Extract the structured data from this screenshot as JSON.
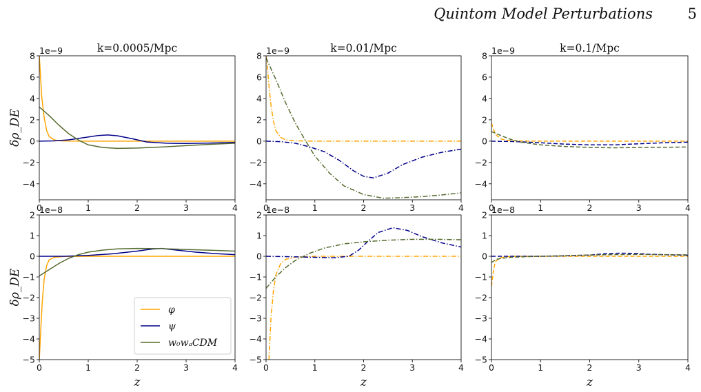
{
  "header": {
    "running_title": "Quintom Model Perturbations",
    "page_number": "5"
  },
  "colors": {
    "phi": "#FFA500",
    "psi": "#00008B",
    "w0wa": "#556B2F"
  },
  "legend": {
    "placement": "lower-right of bottom-left panel",
    "entries": [
      "φ",
      "ψ",
      "w₀wₐCDM"
    ]
  },
  "chart_data": [
    {
      "type": "line",
      "title": "k=0.0005/Mpc",
      "xlabel": "",
      "ylabel": "δρ_DE",
      "offset_label": "1e−9",
      "xlim": [
        0,
        4
      ],
      "ylim": [
        -5.5,
        8
      ],
      "xticks": [
        "0",
        "1",
        "2",
        "3",
        "4"
      ],
      "yticks": [
        "−4",
        "−2",
        "0",
        "2",
        "4",
        "6",
        "8"
      ],
      "ytick_values": [
        -4,
        -2,
        0,
        2,
        4,
        6,
        8
      ],
      "series": [
        {
          "name": "φ",
          "color": "#FFA500",
          "dash": "solid",
          "x": [
            0,
            0.02,
            0.05,
            0.1,
            0.15,
            0.2,
            0.3,
            0.4,
            0.6,
            1,
            2,
            3,
            4
          ],
          "y": [
            8,
            6.5,
            4.2,
            2.2,
            1.0,
            0.45,
            0.12,
            0.04,
            0.01,
            0,
            0,
            0,
            0
          ]
        },
        {
          "name": "ψ",
          "color": "#00008B",
          "dash": "solid",
          "x": [
            0,
            0.3,
            0.6,
            0.9,
            1.2,
            1.4,
            1.6,
            1.9,
            2.2,
            2.6,
            3,
            3.5,
            4
          ],
          "y": [
            0,
            0.02,
            0.12,
            0.32,
            0.52,
            0.58,
            0.5,
            0.22,
            -0.08,
            -0.2,
            -0.22,
            -0.18,
            -0.12
          ]
        },
        {
          "name": "w₀wₐCDM",
          "color": "#556B2F",
          "dash": "solid",
          "x": [
            0,
            0.2,
            0.4,
            0.6,
            0.8,
            1,
            1.3,
            1.6,
            2,
            2.5,
            3,
            3.5,
            4
          ],
          "y": [
            3.2,
            2.4,
            1.5,
            0.7,
            0.1,
            -0.35,
            -0.6,
            -0.68,
            -0.65,
            -0.55,
            -0.42,
            -0.3,
            -0.2
          ]
        }
      ]
    },
    {
      "type": "line",
      "title": "k=0.01/Mpc",
      "xlabel": "",
      "ylabel": "",
      "offset_label": "1e−9",
      "xlim": [
        0,
        4
      ],
      "ylim": [
        -5.5,
        8
      ],
      "xticks": [
        "0",
        "1",
        "2",
        "3",
        "4"
      ],
      "yticks": [
        "−4",
        "−2",
        "0",
        "2",
        "4",
        "6",
        "8"
      ],
      "ytick_values": [
        -4,
        -2,
        0,
        2,
        4,
        6,
        8
      ],
      "series": [
        {
          "name": "φ",
          "color": "#FFA500",
          "dash": "dashdot",
          "x": [
            0,
            0.03,
            0.06,
            0.1,
            0.15,
            0.2,
            0.3,
            0.4,
            0.6,
            1,
            2,
            3,
            4
          ],
          "y": [
            8,
            6.8,
            5.2,
            3.4,
            1.9,
            1.0,
            0.35,
            0.12,
            0.03,
            0,
            0,
            0,
            0
          ]
        },
        {
          "name": "ψ",
          "color": "#00008B",
          "dash": "dashdot",
          "x": [
            0,
            0.3,
            0.6,
            0.9,
            1.2,
            1.5,
            1.8,
            2.0,
            2.2,
            2.5,
            2.8,
            3.2,
            3.6,
            4
          ],
          "y": [
            0,
            -0.05,
            -0.2,
            -0.55,
            -1.0,
            -1.8,
            -2.8,
            -3.3,
            -3.45,
            -3.0,
            -2.2,
            -1.5,
            -1.05,
            -0.75
          ]
        },
        {
          "name": "w₀wₐCDM",
          "color": "#556B2F",
          "dash": "dashdot",
          "x": [
            0,
            0.2,
            0.4,
            0.6,
            0.8,
            1,
            1.3,
            1.6,
            2,
            2.4,
            2.8,
            3.2,
            3.6,
            4
          ],
          "y": [
            7.8,
            5.8,
            3.6,
            1.7,
            0.1,
            -1.4,
            -3.0,
            -4.2,
            -5.0,
            -5.35,
            -5.3,
            -5.2,
            -5.05,
            -4.85
          ]
        }
      ]
    },
    {
      "type": "line",
      "title": "k=0.1/Mpc",
      "xlabel": "",
      "ylabel": "",
      "offset_label": "1e−9",
      "xlim": [
        0,
        4
      ],
      "ylim": [
        -5.5,
        8
      ],
      "xticks": [
        "0",
        "1",
        "2",
        "3",
        "4"
      ],
      "yticks": [
        "−4",
        "−2",
        "0",
        "2",
        "4",
        "6",
        "8"
      ],
      "ytick_values": [
        -4,
        -2,
        0,
        2,
        4,
        6,
        8
      ],
      "series": [
        {
          "name": "φ",
          "color": "#FFA500",
          "dash": "dashed",
          "x": [
            0,
            0.02,
            0.05,
            0.1,
            0.2,
            0.3,
            0.5,
            1,
            2,
            3,
            4
          ],
          "y": [
            1.7,
            1.4,
            1.0,
            0.55,
            0.2,
            0.08,
            0.02,
            0,
            0,
            0,
            0
          ]
        },
        {
          "name": "ψ",
          "color": "#00008B",
          "dash": "dashed",
          "x": [
            0,
            0.5,
            1,
            1.5,
            2,
            2.5,
            3,
            3.5,
            4
          ],
          "y": [
            0,
            -0.05,
            -0.15,
            -0.28,
            -0.35,
            -0.35,
            -0.25,
            -0.15,
            -0.1
          ]
        },
        {
          "name": "w₀wₐCDM",
          "color": "#556B2F",
          "dash": "dashed",
          "x": [
            0,
            0.2,
            0.4,
            0.6,
            1,
            1.5,
            2,
            2.5,
            3,
            3.5,
            4
          ],
          "y": [
            0.9,
            0.5,
            0.15,
            -0.1,
            -0.35,
            -0.5,
            -0.6,
            -0.62,
            -0.6,
            -0.58,
            -0.55
          ]
        }
      ]
    },
    {
      "type": "line",
      "title": "",
      "xlabel": "z",
      "ylabel": "δρ_DE",
      "offset_label": "1e−8",
      "xlim": [
        0,
        4
      ],
      "ylim": [
        -5,
        2
      ],
      "xticks": [
        "0",
        "1",
        "2",
        "3",
        "4"
      ],
      "yticks": [
        "−5",
        "−4",
        "−3",
        "−2",
        "−1",
        "0",
        "1",
        "2"
      ],
      "ytick_values": [
        -5,
        -4,
        -3,
        -2,
        -1,
        0,
        1,
        2
      ],
      "series": [
        {
          "name": "φ",
          "color": "#FFA500",
          "dash": "solid",
          "x": [
            0,
            0.03,
            0.06,
            0.1,
            0.15,
            0.2,
            0.3,
            0.5,
            1,
            2,
            3,
            4
          ],
          "y": [
            -5,
            -3.6,
            -2.2,
            -1.1,
            -0.45,
            -0.18,
            -0.05,
            -0.01,
            0,
            0,
            0,
            0
          ]
        },
        {
          "name": "ψ",
          "color": "#00008B",
          "dash": "solid",
          "x": [
            0,
            0.5,
            1,
            1.5,
            2,
            2.3,
            2.5,
            2.8,
            3.2,
            3.6,
            4
          ],
          "y": [
            0,
            0,
            0.04,
            0.12,
            0.25,
            0.35,
            0.38,
            0.3,
            0.2,
            0.13,
            0.08
          ]
        },
        {
          "name": "w₀wₐCDM",
          "color": "#556B2F",
          "dash": "solid",
          "x": [
            0,
            0.2,
            0.4,
            0.6,
            0.8,
            1,
            1.3,
            1.6,
            2,
            2.5,
            3,
            3.5,
            4
          ],
          "y": [
            -0.95,
            -0.65,
            -0.35,
            -0.1,
            0.08,
            0.2,
            0.3,
            0.36,
            0.38,
            0.37,
            0.33,
            0.29,
            0.25
          ]
        }
      ]
    },
    {
      "type": "line",
      "title": "",
      "xlabel": "z",
      "ylabel": "",
      "offset_label": "1e−8",
      "xlim": [
        0,
        4
      ],
      "ylim": [
        -5,
        2
      ],
      "xticks": [
        "0",
        "1",
        "2",
        "3",
        "4"
      ],
      "yticks": [
        "−5",
        "−4",
        "−3",
        "−2",
        "−1",
        "0",
        "1",
        "2"
      ],
      "ytick_values": [
        -5,
        -4,
        -3,
        -2,
        -1,
        0,
        1,
        2
      ],
      "series": [
        {
          "name": "φ",
          "color": "#FFA500",
          "dash": "dashdot",
          "x": [
            0.06,
            0.1,
            0.15,
            0.2,
            0.3,
            0.4,
            0.6,
            1,
            2,
            3,
            4
          ],
          "y": [
            -5,
            -3.0,
            -1.7,
            -0.9,
            -0.35,
            -0.15,
            -0.04,
            0,
            0,
            0,
            0
          ]
        },
        {
          "name": "ψ",
          "color": "#00008B",
          "dash": "dashdot",
          "x": [
            0,
            0.5,
            1,
            1.4,
            1.7,
            1.9,
            2.1,
            2.3,
            2.6,
            2.9,
            3.2,
            3.6,
            4
          ],
          "y": [
            0,
            -0.02,
            -0.05,
            -0.07,
            0,
            0.3,
            0.75,
            1.15,
            1.38,
            1.25,
            0.95,
            0.65,
            0.45
          ]
        },
        {
          "name": "w₀wₐCDM",
          "color": "#556B2F",
          "dash": "dashdot",
          "x": [
            0,
            0.2,
            0.4,
            0.6,
            0.9,
            1.2,
            1.6,
            2,
            2.5,
            3,
            3.5,
            4
          ],
          "y": [
            -1.55,
            -1.0,
            -0.55,
            -0.2,
            0.15,
            0.4,
            0.6,
            0.7,
            0.78,
            0.82,
            0.82,
            0.8
          ]
        }
      ]
    },
    {
      "type": "line",
      "title": "",
      "xlabel": "z",
      "ylabel": "",
      "offset_label": "1e−8",
      "xlim": [
        0,
        4
      ],
      "ylim": [
        -5,
        2
      ],
      "xticks": [
        "0",
        "1",
        "2",
        "3",
        "4"
      ],
      "yticks": [
        "−5",
        "−4",
        "−3",
        "−2",
        "−1",
        "0",
        "1",
        "2"
      ],
      "ytick_values": [
        -5,
        -4,
        -3,
        -2,
        -1,
        0,
        1,
        2
      ],
      "series": [
        {
          "name": "φ",
          "color": "#FFA500",
          "dash": "dashed",
          "x": [
            0,
            0.02,
            0.04,
            0.07,
            0.1,
            0.2,
            0.4,
            1,
            2,
            3,
            4
          ],
          "y": [
            -1.45,
            -1.1,
            -0.7,
            -0.35,
            -0.2,
            -0.06,
            0,
            0,
            0,
            0,
            0
          ]
        },
        {
          "name": "ψ",
          "color": "#00008B",
          "dash": "dashed",
          "x": [
            0,
            0.5,
            1,
            1.5,
            2,
            2.3,
            2.6,
            2.9,
            3.2,
            3.6,
            4
          ],
          "y": [
            0,
            0,
            0,
            0.02,
            0.06,
            0.12,
            0.15,
            0.14,
            0.1,
            0.07,
            0.05
          ]
        },
        {
          "name": "w₀wₐCDM",
          "color": "#556B2F",
          "dash": "dashed",
          "x": [
            0,
            0.1,
            0.2,
            0.4,
            0.7,
            1,
            1.5,
            2,
            2.5,
            3,
            3.5,
            4
          ],
          "y": [
            -0.3,
            -0.15,
            -0.1,
            -0.05,
            -0.02,
            0,
            0.03,
            0.06,
            0.08,
            0.09,
            0.08,
            0.07
          ]
        }
      ]
    }
  ]
}
